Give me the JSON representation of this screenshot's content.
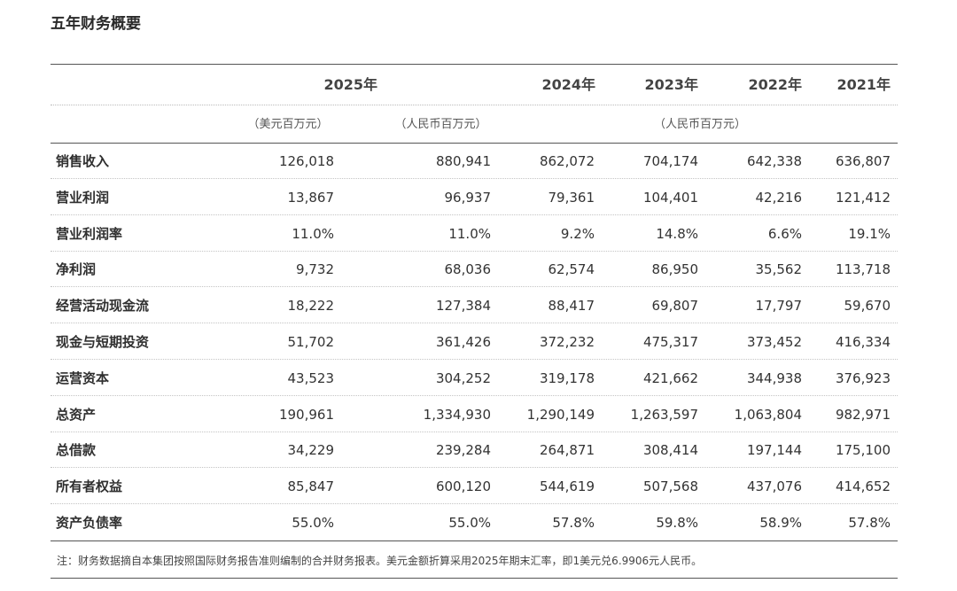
{
  "title": "五年财务概要",
  "header": {
    "years": [
      "2025年",
      "2024年",
      "2023年",
      "2022年",
      "2021年"
    ],
    "units": {
      "usd": "（美元百万元）",
      "rmb_2025": "（人民币百万元）",
      "rmb_history": "（人民币百万元）"
    }
  },
  "rows": [
    {
      "label": "销售收入",
      "values": [
        "126,018",
        "880,941",
        "862,072",
        "704,174",
        "642,338",
        "636,807"
      ]
    },
    {
      "label": "营业利润",
      "values": [
        "13,867",
        "96,937",
        "79,361",
        "104,401",
        "42,216",
        "121,412"
      ]
    },
    {
      "label": "营业利润率",
      "values": [
        "11.0%",
        "11.0%",
        "9.2%",
        "14.8%",
        "6.6%",
        "19.1%"
      ]
    },
    {
      "label": "净利润",
      "values": [
        "9,732",
        "68,036",
        "62,574",
        "86,950",
        "35,562",
        "113,718"
      ]
    },
    {
      "label": "经营活动现金流",
      "values": [
        "18,222",
        "127,384",
        "88,417",
        "69,807",
        "17,797",
        "59,670"
      ]
    },
    {
      "label": "现金与短期投资",
      "values": [
        "51,702",
        "361,426",
        "372,232",
        "475,317",
        "373,452",
        "416,334"
      ]
    },
    {
      "label": "运营资本",
      "values": [
        "43,523",
        "304,252",
        "319,178",
        "421,662",
        "344,938",
        "376,923"
      ]
    },
    {
      "label": "总资产",
      "values": [
        "190,961",
        "1,334,930",
        "1,290,149",
        "1,263,597",
        "1,063,804",
        "982,971"
      ]
    },
    {
      "label": "总借款",
      "values": [
        "34,229",
        "239,284",
        "264,871",
        "308,414",
        "197,144",
        "175,100"
      ]
    },
    {
      "label": "所有者权益",
      "values": [
        "85,847",
        "600,120",
        "544,619",
        "507,568",
        "437,076",
        "414,652"
      ]
    },
    {
      "label": "资产负债率",
      "values": [
        "55.0%",
        "55.0%",
        "57.8%",
        "59.8%",
        "58.9%",
        "57.8%"
      ]
    }
  ],
  "footnote": "注：财务数据摘自本集团按照国际财务报告准则编制的合并财务报表。美元金额折算采用2025年期末汇率，即1美元兑6.9906元人民币。"
}
